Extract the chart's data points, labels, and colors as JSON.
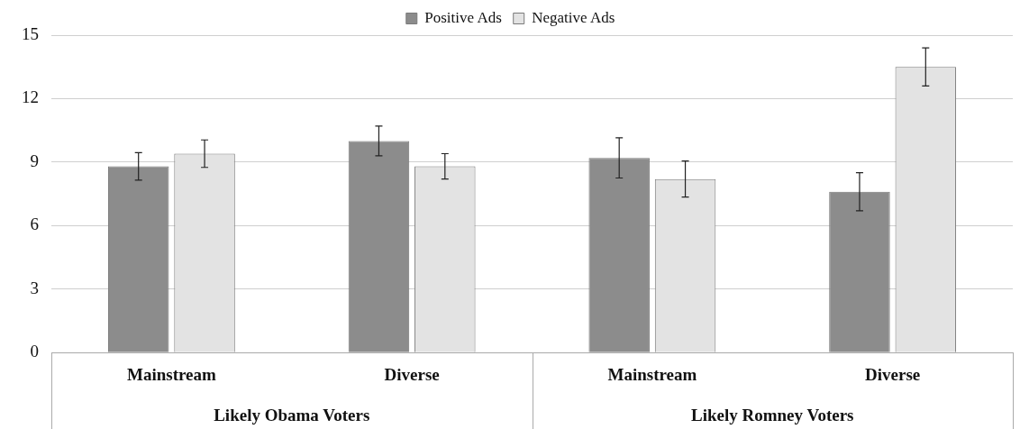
{
  "chart_data": {
    "type": "bar",
    "categories": [
      "Mainstream",
      "Diverse",
      "Mainstream",
      "Diverse"
    ],
    "series": [
      {
        "name": "Positive Ads",
        "color": "#8c8c8c",
        "values": [
          8.8,
          10.0,
          9.2,
          7.6
        ],
        "errors": [
          0.65,
          0.7,
          0.95,
          0.9
        ]
      },
      {
        "name": "Negative Ads",
        "color": "#e3e3e3",
        "values": [
          9.4,
          8.8,
          8.2,
          13.5
        ],
        "errors": [
          0.65,
          0.6,
          0.85,
          0.9
        ]
      }
    ],
    "annotations": [
      "Likely Obama Voters",
      "Likely Romney Voters"
    ],
    "ylim": [
      0,
      15
    ],
    "yticks": [
      0,
      3,
      6,
      9,
      12,
      15
    ],
    "grid": "y",
    "legend": "top"
  }
}
